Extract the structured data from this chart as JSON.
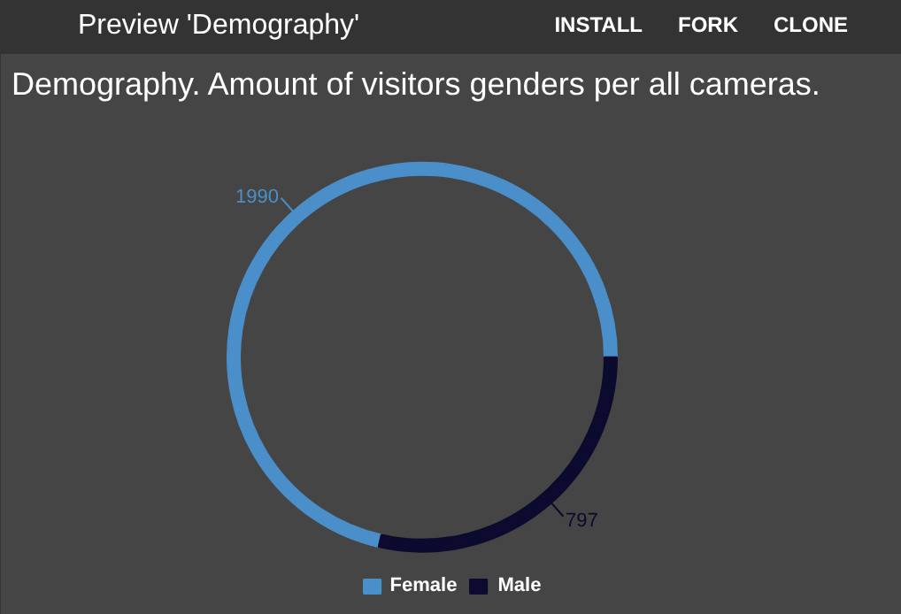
{
  "chart_data": {
    "type": "donut",
    "title": "Demography. Amount of visitors genders per all cameras.",
    "categories": [
      "Female",
      "Male"
    ],
    "values": [
      1990,
      797
    ],
    "colors": [
      "#4a8fc9",
      "#0c0a2e"
    ],
    "data_labels": true,
    "legend": "bottom",
    "annotations": [
      "Preview 'Demography'",
      "INSTALL",
      "FORK",
      "CLONE"
    ]
  }
}
